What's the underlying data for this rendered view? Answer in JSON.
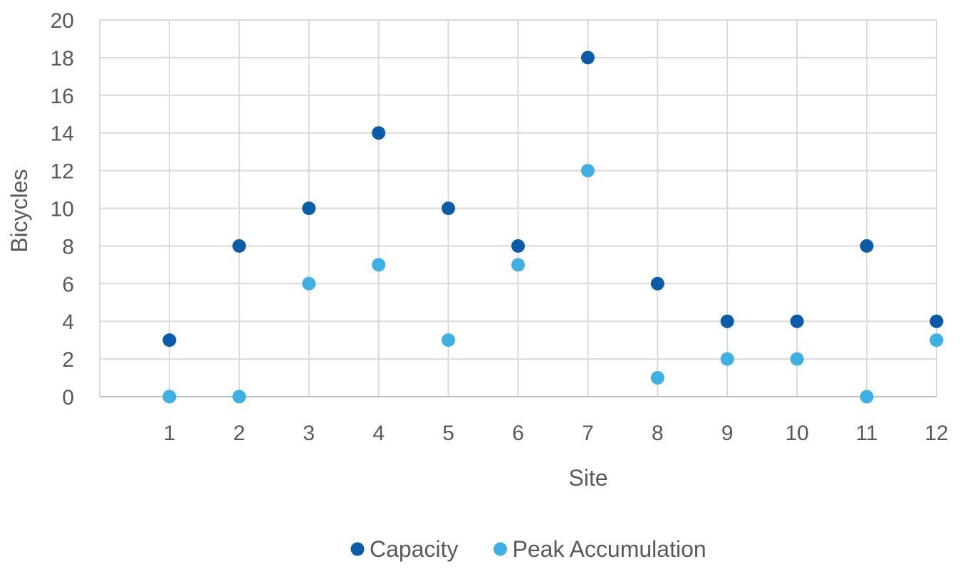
{
  "chart_data": {
    "type": "scatter",
    "title": "",
    "xlabel": "Site",
    "ylabel": "Bicycles",
    "x": [
      1,
      2,
      3,
      4,
      5,
      6,
      7,
      8,
      9,
      10,
      11,
      12
    ],
    "xticks": [
      1,
      2,
      3,
      4,
      5,
      6,
      7,
      8,
      9,
      10,
      11,
      12
    ],
    "xlim": [
      0,
      12
    ],
    "ylim": [
      0,
      20
    ],
    "yticks": [
      0,
      2,
      4,
      6,
      8,
      10,
      12,
      14,
      16,
      18,
      20
    ],
    "grid": true,
    "legend_position": "bottom",
    "series": [
      {
        "name": "Capacity",
        "color": "#0B5CA8",
        "values": [
          3,
          8,
          10,
          14,
          10,
          8,
          18,
          6,
          4,
          4,
          8,
          4
        ]
      },
      {
        "name": "Peak Accumulation",
        "color": "#3FB0E4",
        "values": [
          0,
          0,
          6,
          7,
          3,
          7,
          12,
          1,
          2,
          2,
          0,
          3
        ]
      }
    ],
    "draw_order": [
      1,
      0
    ]
  }
}
